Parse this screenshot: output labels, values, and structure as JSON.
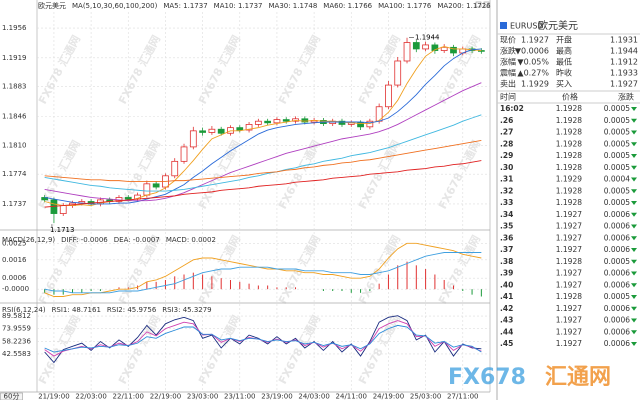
{
  "chart_data": [
    {
      "type": "candlestick",
      "title": "欧元美元",
      "ma_label": "MA(5,10,30,60,100,200)",
      "categories": [
        null,
        "21/19:00",
        null,
        null,
        null,
        "22/03:00",
        null,
        null,
        null,
        "22/11:00",
        null,
        null,
        null,
        "22/19:00",
        null,
        null,
        null,
        "23/03:00",
        null,
        null,
        null,
        "23/11:00",
        null,
        null,
        null,
        "23/19:00",
        null,
        null,
        null,
        "24/03:00",
        null,
        null,
        null,
        "24/11:00",
        null,
        null,
        null,
        "24/19:00",
        null,
        null,
        null,
        "25/03:00",
        null,
        null,
        null,
        "27/11:00",
        null,
        null
      ],
      "open": [
        1.1745,
        1.1742,
        1.1725,
        1.1735,
        1.1738,
        1.174,
        1.1737,
        1.1742,
        1.174,
        1.1745,
        1.1743,
        1.1748,
        1.1762,
        1.1758,
        1.1772,
        1.179,
        1.1808,
        1.1828,
        1.1826,
        1.183,
        1.1825,
        1.1832,
        1.1829,
        1.1836,
        1.184,
        1.1838,
        1.1842,
        1.184,
        1.1843,
        1.1839,
        1.1841,
        1.1837,
        1.184,
        1.1836,
        1.1838,
        1.1833,
        1.184,
        1.1858,
        1.1885,
        1.1915,
        1.1938,
        1.193,
        1.1935,
        1.1928,
        1.1932,
        1.1925,
        1.193,
        1.1928
      ],
      "high": [
        1.1748,
        1.1745,
        1.1738,
        1.1741,
        1.1743,
        1.1743,
        1.1745,
        1.1745,
        1.1748,
        1.1748,
        1.1751,
        1.1766,
        1.1765,
        1.1775,
        1.1794,
        1.1812,
        1.1833,
        1.1832,
        1.1834,
        1.1833,
        1.1835,
        1.1835,
        1.1839,
        1.1843,
        1.1843,
        1.1845,
        1.1845,
        1.1846,
        1.1846,
        1.1844,
        1.1844,
        1.1843,
        1.1843,
        1.1841,
        1.1841,
        1.1843,
        1.1862,
        1.189,
        1.192,
        1.1944,
        1.1941,
        1.1939,
        1.1938,
        1.1936,
        1.1935,
        1.1933,
        1.1933,
        1.1931
      ],
      "low": [
        1.1739,
        1.1713,
        1.1722,
        1.1732,
        1.1735,
        1.1734,
        1.1734,
        1.1737,
        1.1737,
        1.174,
        1.174,
        1.1745,
        1.1755,
        1.1755,
        1.1769,
        1.1787,
        1.1805,
        1.1822,
        1.1823,
        1.1822,
        1.1822,
        1.1826,
        1.1826,
        1.1833,
        1.1835,
        1.1835,
        1.1837,
        1.1837,
        1.1836,
        1.1836,
        1.1834,
        1.1834,
        1.1833,
        1.1833,
        1.1829,
        1.183,
        1.1837,
        1.1855,
        1.1882,
        1.1912,
        1.1926,
        1.1927,
        1.1924,
        1.1925,
        1.1921,
        1.1922,
        1.1925,
        1.1924
      ],
      "close": [
        1.1742,
        1.1725,
        1.1735,
        1.1738,
        1.174,
        1.1737,
        1.1742,
        1.174,
        1.1745,
        1.1743,
        1.1748,
        1.1762,
        1.1758,
        1.1772,
        1.179,
        1.1808,
        1.1828,
        1.1826,
        1.183,
        1.1825,
        1.1832,
        1.1829,
        1.1836,
        1.184,
        1.1838,
        1.1842,
        1.184,
        1.1843,
        1.1839,
        1.1841,
        1.1837,
        1.184,
        1.1836,
        1.1838,
        1.1833,
        1.184,
        1.1858,
        1.1885,
        1.1915,
        1.1938,
        1.193,
        1.1935,
        1.1928,
        1.1932,
        1.1925,
        1.193,
        1.1928,
        1.1927
      ],
      "up_color": "#e03030",
      "down_color": "#1a9a3a",
      "series": [
        {
          "name": "MA5: 1.1737",
          "color": "#f0a020",
          "values": [
            1.174,
            1.1737,
            1.1735,
            1.1735,
            1.1736,
            1.1735,
            1.1738,
            1.174,
            1.1741,
            1.1741,
            1.1744,
            1.1748,
            1.1751,
            1.1757,
            1.1766,
            1.1778,
            1.1791,
            1.1805,
            1.1818,
            1.1823,
            1.1828,
            1.1828,
            1.183,
            1.1832,
            1.1835,
            1.1837,
            1.1839,
            1.1841,
            1.184,
            1.1841,
            1.184,
            1.184,
            1.1839,
            1.1838,
            1.1837,
            1.1837,
            1.1841,
            1.1851,
            1.1866,
            1.1887,
            1.1905,
            1.1921,
            1.1929,
            1.1933,
            1.193,
            1.193,
            1.1929,
            1.1928
          ]
        },
        {
          "name": "MA10: 1.1737",
          "color": "#2a6ad8",
          "values": [
            1.1745,
            1.1743,
            1.1741,
            1.1739,
            1.1738,
            1.1737,
            1.1737,
            1.1737,
            1.1738,
            1.1738,
            1.174,
            1.1743,
            1.1746,
            1.1749,
            1.1755,
            1.1761,
            1.177,
            1.1778,
            1.1787,
            1.1795,
            1.1803,
            1.181,
            1.1817,
            1.1824,
            1.1829,
            1.1832,
            1.1834,
            1.1836,
            1.1837,
            1.1838,
            1.1839,
            1.1839,
            1.1839,
            1.1839,
            1.1839,
            1.1838,
            1.184,
            1.1844,
            1.1852,
            1.1862,
            1.1873,
            1.1886,
            1.1897,
            1.1909,
            1.1918,
            1.1925,
            1.1929,
            1.193
          ]
        },
        {
          "name": "MA30: 1.1748",
          "color": "#b040c0",
          "values": [
            1.1755,
            1.1753,
            1.1751,
            1.1749,
            1.1747,
            1.1745,
            1.1744,
            1.1743,
            1.1742,
            1.1741,
            1.1741,
            1.1741,
            1.1742,
            1.1744,
            1.1747,
            1.1751,
            1.1756,
            1.1761,
            1.1766,
            1.1771,
            1.1776,
            1.178,
            1.1784,
            1.1788,
            1.1792,
            1.1796,
            1.18,
            1.1803,
            1.1806,
            1.1809,
            1.1812,
            1.1815,
            1.1818,
            1.182,
            1.1822,
            1.1824,
            1.1827,
            1.1831,
            1.1836,
            1.1842,
            1.1848,
            1.1854,
            1.186,
            1.1866,
            1.1872,
            1.1878,
            1.1883,
            1.1888
          ]
        },
        {
          "name": "MA60: 1.1766",
          "color": "#40b8e0",
          "values": [
            1.177,
            1.1768,
            1.1766,
            1.1764,
            1.1762,
            1.176,
            1.1759,
            1.1757,
            1.1756,
            1.1755,
            1.1754,
            1.1753,
            1.1753,
            1.1753,
            1.1754,
            1.1755,
            1.1757,
            1.1759,
            1.1761,
            1.1763,
            1.1765,
            1.1767,
            1.177,
            1.1772,
            1.1775,
            1.1777,
            1.178,
            1.1782,
            1.1785,
            1.1787,
            1.179,
            1.1792,
            1.1794,
            1.1797,
            1.1799,
            1.1801,
            1.1804,
            1.1807,
            1.1811,
            1.1815,
            1.1819,
            1.1823,
            1.1827,
            1.1831,
            1.1835,
            1.184,
            1.1844,
            1.1848
          ]
        },
        {
          "name": "MA100: 1.1776",
          "color": "#f07020",
          "values": [
            1.1772,
            1.1771,
            1.177,
            1.1769,
            1.1768,
            1.1767,
            1.1767,
            1.1766,
            1.1766,
            1.1765,
            1.1765,
            1.1765,
            1.1765,
            1.1765,
            1.1766,
            1.1766,
            1.1767,
            1.1768,
            1.1769,
            1.177,
            1.1771,
            1.1772,
            1.1773,
            1.1775,
            1.1776,
            1.1777,
            1.1779,
            1.178,
            1.1782,
            1.1783,
            1.1785,
            1.1786,
            1.1788,
            1.1789,
            1.1791,
            1.1792,
            1.1794,
            1.1796,
            1.1798,
            1.18,
            1.1802,
            1.1804,
            1.1806,
            1.1808,
            1.181,
            1.1812,
            1.1814,
            1.1816
          ]
        },
        {
          "name": "MA200: 1.1726",
          "color": "#e02020",
          "values": [
            1.1733,
            1.1734,
            1.1735,
            1.1736,
            1.1737,
            1.1738,
            1.1739,
            1.174,
            1.1741,
            1.1742,
            1.1743,
            1.1744,
            1.1745,
            1.1746,
            1.1747,
            1.1749,
            1.175,
            1.1751,
            1.1752,
            1.1754,
            1.1755,
            1.1756,
            1.1757,
            1.1759,
            1.176,
            1.1761,
            1.1762,
            1.1764,
            1.1765,
            1.1766,
            1.1767,
            1.1769,
            1.177,
            1.1771,
            1.1772,
            1.1774,
            1.1775,
            1.1776,
            1.1777,
            1.1779,
            1.178,
            1.1781,
            1.1783,
            1.1784,
            1.1786,
            1.1787,
            1.1789,
            1.1791
          ]
        }
      ],
      "ylim": [
        1.1707,
        1.1976
      ],
      "yticks": [
        1.1956,
        1.1919,
        1.1883,
        1.1846,
        {
          "value": 1.181,
          "label": "1.1810"
        },
        1.1774,
        1.1737
      ],
      "grid": true
    },
    {
      "type": "macd",
      "title": "MACD(26,12,9)",
      "bars": {
        "name": "MACD: 0.0002",
        "up_color": "#e03030",
        "down_color": "#1a9a3a",
        "values": [
          -0.0002,
          -0.0003,
          -0.0003,
          -0.0002,
          -0.0002,
          -0.0001,
          -0.0001,
          0,
          0.0001,
          0.0001,
          0.0002,
          0.0004,
          0.0004,
          0.0005,
          0.0007,
          0.0008,
          0.0009,
          0.0008,
          0.0007,
          0.0006,
          0.0005,
          0.0004,
          0.0003,
          0.0002,
          0.0002,
          0.0001,
          0.0001,
          0.0001,
          0,
          0,
          -0.0001,
          -0.0001,
          -0.0001,
          -0.0002,
          -0.0002,
          -0.0001,
          0.0003,
          0.0008,
          0.0013,
          0.0015,
          0.0013,
          0.0011,
          0.0008,
          0.0005,
          0.0002,
          -0.0001,
          -0.0003,
          -0.0004
        ]
      },
      "series": [
        {
          "name": "DIFF: -0.0006",
          "color": "#f0a020",
          "values": [
            -0.0002,
            -0.0004,
            -0.0004,
            -0.0003,
            -0.0003,
            -0.0002,
            -0.0002,
            -0.0001,
            0,
            0,
            0.0001,
            0.0004,
            0.0005,
            0.0007,
            0.001,
            0.0013,
            0.0016,
            0.0017,
            0.0017,
            0.0016,
            0.0015,
            0.0014,
            0.0013,
            0.0012,
            0.0011,
            0.0011,
            0.001,
            0.001,
            0.0009,
            0.0009,
            0.0008,
            0.0008,
            0.0007,
            0.0006,
            0.0006,
            0.0007,
            0.0011,
            0.0017,
            0.0022,
            0.0025,
            0.0025,
            0.0024,
            0.0023,
            0.0022,
            0.0021,
            0.0019,
            0.0018,
            0.0017
          ]
        },
        {
          "name": "DEA: -0.0007",
          "color": "#40a0e0",
          "values": [
            0,
            -0.0001,
            -0.0001,
            -0.0002,
            -0.0002,
            -0.0002,
            -0.0002,
            -0.0002,
            -0.0001,
            -0.0001,
            -0.0001,
            0,
            0.0001,
            0.0002,
            0.0003,
            0.0005,
            0.0007,
            0.0009,
            0.001,
            0.0011,
            0.0011,
            0.0012,
            0.0012,
            0.0012,
            0.0012,
            0.0011,
            0.0011,
            0.0011,
            0.001,
            0.001,
            0.001,
            0.0009,
            0.0009,
            0.0009,
            0.0008,
            0.0008,
            0.0009,
            0.001,
            0.0012,
            0.0014,
            0.0016,
            0.0018,
            0.0019,
            0.002,
            0.002,
            0.002,
            0.002,
            0.002
          ]
        }
      ],
      "ylim": [
        -0.0007,
        0.0029
      ],
      "yticks": [
        0.0025,
        0.0016,
        0.0006,
        {
          "value": 0,
          "label": "-0.0000"
        }
      ],
      "grid": true
    },
    {
      "type": "line",
      "title": "RSI(6,12,24)",
      "series": [
        {
          "name": "RSI1: 48.7161",
          "color": "#1a2c80",
          "values": [
            45,
            32,
            48,
            52,
            56,
            47,
            58,
            50,
            60,
            52,
            63,
            78,
            66,
            80,
            85,
            88,
            84,
            62,
            66,
            50,
            62,
            55,
            66,
            62,
            55,
            64,
            55,
            62,
            50,
            58,
            47,
            58,
            45,
            55,
            40,
            58,
            82,
            88,
            90,
            84,
            60,
            66,
            45,
            58,
            40,
            55,
            50,
            49
          ]
        },
        {
          "name": "RSI2: 45.9756",
          "color": "#d040b0",
          "values": [
            48,
            40,
            46,
            49,
            52,
            49,
            54,
            51,
            56,
            53,
            58,
            70,
            65,
            74,
            78,
            82,
            80,
            66,
            67,
            57,
            62,
            58,
            63,
            61,
            57,
            61,
            57,
            60,
            53,
            57,
            51,
            56,
            49,
            54,
            46,
            56,
            74,
            80,
            84,
            80,
            64,
            65,
            52,
            58,
            47,
            54,
            51,
            46
          ]
        },
        {
          "name": "RSI3: 45.3279",
          "color": "#2a8ad8",
          "values": [
            50,
            45,
            47,
            49,
            51,
            50,
            52,
            51,
            54,
            53,
            56,
            64,
            62,
            68,
            72,
            76,
            76,
            67,
            67,
            60,
            62,
            59,
            62,
            61,
            58,
            60,
            58,
            59,
            55,
            57,
            53,
            56,
            52,
            54,
            49,
            55,
            68,
            74,
            78,
            76,
            66,
            65,
            56,
            58,
            51,
            54,
            52,
            45
          ]
        }
      ],
      "ylim": [
        -4.6,
        103.3
      ],
      "yticks": [
        89.5812,
        73.9559,
        58.2236,
        42.5583
      ],
      "grid": true
    }
  ],
  "period_button": "60分",
  "watermark": "FX678 汇通网",
  "logo": {
    "left": "FX678",
    "right": "汇通网"
  },
  "quote": {
    "symbol": "EURUSD",
    "name": "欧元美元",
    "rows": [
      [
        "现价",
        "1.1927",
        "开盘",
        "1.1931"
      ],
      [
        "涨跌",
        "▼0.0006",
        "最高",
        "1.1944"
      ],
      [
        "涨幅",
        "▼0.05%",
        "最低",
        "1.1912"
      ],
      [
        "震幅",
        "▲0.27%",
        "昨收",
        "1.1933"
      ],
      [
        "卖出",
        "1.1929",
        "买入",
        "1.1927"
      ]
    ],
    "row_colors": [
      [
        "#1a9a3a",
        "#1a9a3a"
      ],
      [
        "#1a9a3a",
        "#e02020"
      ],
      [
        "#1a9a3a",
        "#1a9a3a"
      ],
      [
        "#e02020",
        "#333333"
      ],
      [
        "#1a9a3a",
        "#1a9a3a"
      ]
    ]
  },
  "trades": {
    "headers": [
      "时间",
      "价格",
      "涨跌"
    ],
    "color": "#1a9a3a",
    "rows": [
      [
        "16:02",
        "1.1928",
        "0.0005"
      ],
      [
        ".26",
        "1.1928",
        "0.0005"
      ],
      [
        ".27",
        "1.1928",
        "0.0005"
      ],
      [
        ".28",
        "1.1928",
        "0.0005"
      ],
      [
        ".29",
        "1.1928",
        "0.0005"
      ],
      [
        ".30",
        "1.1928",
        "0.0005"
      ],
      [
        ".31",
        "1.1929",
        "0.0004"
      ],
      [
        ".32",
        "1.1928",
        "0.0005"
      ],
      [
        ".33",
        "1.1928",
        "0.0005"
      ],
      [
        ".34",
        "1.1927",
        "0.0006"
      ],
      [
        ".35",
        "1.1927",
        "0.0006"
      ],
      [
        ".36",
        "1.1927",
        "0.0006"
      ],
      [
        ".37",
        "1.1927",
        "0.0006"
      ],
      [
        ".38",
        "1.1928",
        "0.0005"
      ],
      [
        ".39",
        "1.1927",
        "0.0006"
      ],
      [
        ".40",
        "1.1927",
        "0.0006"
      ],
      [
        ".41",
        "1.1928",
        "0.0005"
      ],
      [
        ".42",
        "1.1927",
        "0.0006"
      ],
      [
        ".43",
        "1.1927",
        "0.0006"
      ],
      [
        ".44",
        "1.1927",
        "0.0006"
      ],
      [
        ".45",
        "1.1927",
        "0.0006"
      ]
    ]
  }
}
